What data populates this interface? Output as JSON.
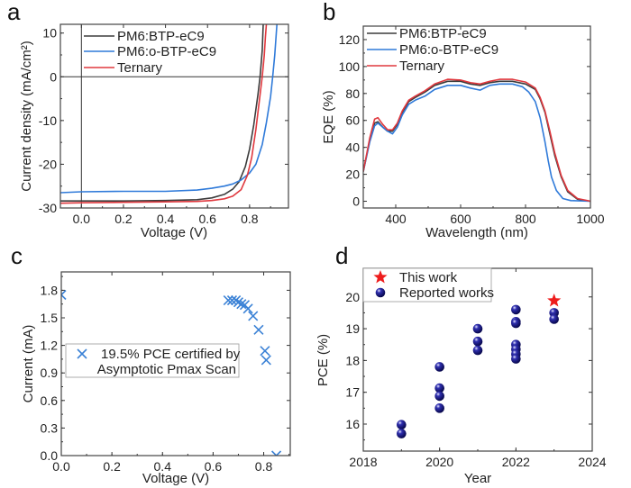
{
  "panel_labels": [
    "a",
    "b",
    "c",
    "d"
  ],
  "colors": {
    "PM6:BTP-eC9": "#3c3c3c",
    "PM6:o-BTP-eC9": "#2f7ad9",
    "Ternary": "#e0383e",
    "certified": "#3b82d6",
    "reported": "#12128a",
    "this_work": "#ee1c1c"
  },
  "chart_data": [
    {
      "type": "line",
      "xlabel": "Voltage (V)",
      "ylabel": "Current density (mA/cm²)",
      "xlim": [
        -0.1,
        0.985
      ],
      "ylim": [
        -30,
        12
      ],
      "xticks": [
        0.0,
        0.2,
        0.4,
        0.6,
        0.8
      ],
      "xtick_labels": [
        "0.0",
        "0.2",
        "0.4",
        "0.6",
        "0.8"
      ],
      "yticks": [
        10,
        0,
        -10,
        -20,
        -30
      ],
      "ytick_labels": [
        "10",
        "0",
        "-10",
        "-20",
        "-30"
      ],
      "reference_lines": {
        "x": 0,
        "y": 0
      },
      "legend": "top-left",
      "series": [
        {
          "name": "PM6:BTP-eC9",
          "x": [
            -0.1,
            0.0,
            0.2,
            0.4,
            0.55,
            0.62,
            0.68,
            0.72,
            0.75,
            0.78,
            0.8,
            0.82,
            0.84,
            0.85,
            0.86,
            0.865
          ],
          "y": [
            -28.4,
            -28.4,
            -28.4,
            -28.3,
            -28.1,
            -27.7,
            -26.9,
            -25.7,
            -24.0,
            -20.5,
            -16.5,
            -11,
            -4,
            0,
            6,
            12
          ]
        },
        {
          "name": "PM6:o-BTP-eC9",
          "x": [
            -0.1,
            0.0,
            0.2,
            0.4,
            0.55,
            0.62,
            0.68,
            0.72,
            0.76,
            0.8,
            0.83,
            0.86,
            0.88,
            0.9,
            0.91,
            0.92,
            0.93
          ],
          "y": [
            -26.5,
            -26.3,
            -26.2,
            -26.2,
            -25.9,
            -25.5,
            -25.0,
            -24.5,
            -23.6,
            -22.0,
            -20.0,
            -15.5,
            -10.5,
            -4.5,
            0,
            5,
            12
          ]
        },
        {
          "name": "Ternary",
          "x": [
            -0.1,
            0.0,
            0.2,
            0.4,
            0.55,
            0.62,
            0.68,
            0.72,
            0.76,
            0.79,
            0.81,
            0.83,
            0.845,
            0.86,
            0.87,
            0.875,
            0.88
          ],
          "y": [
            -28.9,
            -28.8,
            -28.7,
            -28.6,
            -28.5,
            -28.3,
            -27.9,
            -27.3,
            -25.8,
            -22.5,
            -18.5,
            -12,
            -6,
            0,
            5,
            9,
            12
          ]
        }
      ]
    },
    {
      "type": "line",
      "xlabel": "Wavelength (nm)",
      "ylabel": "EQE (%)",
      "xlim": [
        300,
        1000
      ],
      "ylim": [
        -5,
        130
      ],
      "xticks": [
        400,
        600,
        800,
        1000
      ],
      "xtick_labels": [
        "400",
        "600",
        "800",
        "1000"
      ],
      "yticks": [
        0,
        20,
        40,
        60,
        80,
        100,
        120
      ],
      "ytick_labels": [
        "0",
        "20",
        "40",
        "60",
        "80",
        "100",
        "120"
      ],
      "legend": "top-left",
      "series": [
        {
          "name": "PM6:BTP-eC9",
          "x": [
            300,
            320,
            335,
            345,
            360,
            375,
            390,
            405,
            420,
            440,
            460,
            490,
            520,
            560,
            600,
            630,
            660,
            690,
            720,
            760,
            800,
            830,
            845,
            860,
            875,
            890,
            910,
            930,
            960,
            1000
          ],
          "y": [
            22,
            45,
            58,
            59,
            55,
            52,
            52,
            57,
            66,
            74,
            77,
            81,
            86,
            89,
            89,
            87,
            86,
            88,
            89,
            89,
            87,
            83,
            76,
            66,
            50,
            34,
            18,
            7,
            1.5,
            0
          ]
        },
        {
          "name": "PM6:o-BTP-eC9",
          "x": [
            300,
            320,
            335,
            345,
            360,
            375,
            390,
            405,
            420,
            440,
            460,
            490,
            520,
            560,
            600,
            630,
            660,
            690,
            720,
            760,
            790,
            810,
            830,
            845,
            860,
            870,
            880,
            895,
            915,
            940,
            1000
          ],
          "y": [
            22,
            44,
            56,
            58,
            55,
            52,
            50,
            55,
            64,
            72,
            75,
            78,
            83,
            86,
            86,
            84,
            82.5,
            86,
            87,
            87,
            85,
            81,
            74,
            62,
            44,
            30,
            18,
            8,
            2,
            0.5,
            0
          ]
        },
        {
          "name": "Ternary",
          "x": [
            300,
            320,
            335,
            345,
            360,
            375,
            390,
            405,
            420,
            440,
            460,
            490,
            520,
            560,
            600,
            630,
            660,
            690,
            720,
            760,
            800,
            830,
            845,
            860,
            875,
            890,
            910,
            930,
            960,
            1000
          ],
          "y": [
            22,
            47,
            61,
            62,
            57,
            53,
            53,
            58,
            67,
            75,
            78,
            82,
            87,
            90.5,
            90,
            88,
            87,
            89,
            90.5,
            90.5,
            88.5,
            84,
            77,
            67,
            52,
            36,
            19,
            8,
            2,
            0
          ]
        }
      ]
    },
    {
      "type": "scatter",
      "xlabel": "Voltage (V)",
      "ylabel": "Current (mA)",
      "xlim": [
        0,
        0.905
      ],
      "ylim": [
        0,
        2.0
      ],
      "xticks": [
        0.0,
        0.2,
        0.4,
        0.6,
        0.8
      ],
      "xtick_labels": [
        "0.0",
        "0.2",
        "0.4",
        "0.6",
        "0.8"
      ],
      "yticks": [
        0.0,
        0.3,
        0.6,
        0.9,
        1.2,
        1.5,
        1.8
      ],
      "ytick_labels": [
        "0.0",
        "0.3",
        "0.6",
        "0.9",
        "1.2",
        "1.5",
        "1.8"
      ],
      "legend": "center-left",
      "series": [
        {
          "name": "19.5% PCE certified by Asymptotic Pmax Scan",
          "legend_lines": [
            "19.5% PCE certified by",
            "Asymptotic Pmax Scan"
          ],
          "marker": "x",
          "x": [
            0.0,
            0.66,
            0.675,
            0.69,
            0.7,
            0.712,
            0.725,
            0.738,
            0.758,
            0.78,
            0.805,
            0.81,
            0.85
          ],
          "y": [
            1.75,
            1.69,
            1.69,
            1.69,
            1.67,
            1.65,
            1.64,
            1.6,
            1.52,
            1.37,
            1.14,
            1.04,
            0.0
          ]
        }
      ]
    },
    {
      "type": "scatter",
      "xlabel": "Year",
      "ylabel": "PCE (%)",
      "xlim": [
        2018,
        2024
      ],
      "ylim": [
        15.15,
        20.9
      ],
      "xticks": [
        2018,
        2020,
        2022,
        2024
      ],
      "xtick_labels": [
        "2018",
        "2020",
        "2022",
        "2024"
      ],
      "yticks": [
        16,
        17,
        18,
        19,
        20
      ],
      "ytick_labels": [
        "16",
        "17",
        "18",
        "19",
        "20"
      ],
      "legend": "top-left",
      "series": [
        {
          "name": "This work",
          "marker": "star",
          "x": [
            2023
          ],
          "y": [
            19.88
          ]
        },
        {
          "name": "Reported works",
          "marker": "sphere",
          "x": [
            2019,
            2019,
            2020,
            2020,
            2020,
            2020,
            2021,
            2021,
            2021,
            2022,
            2022,
            2022,
            2022,
            2022,
            2022,
            2022,
            2023,
            2023
          ],
          "y": [
            15.98,
            15.7,
            17.8,
            17.13,
            16.88,
            16.5,
            19.0,
            18.6,
            18.32,
            19.6,
            19.22,
            19.17,
            18.5,
            18.35,
            18.2,
            18.05,
            19.5,
            19.3
          ]
        }
      ]
    }
  ]
}
